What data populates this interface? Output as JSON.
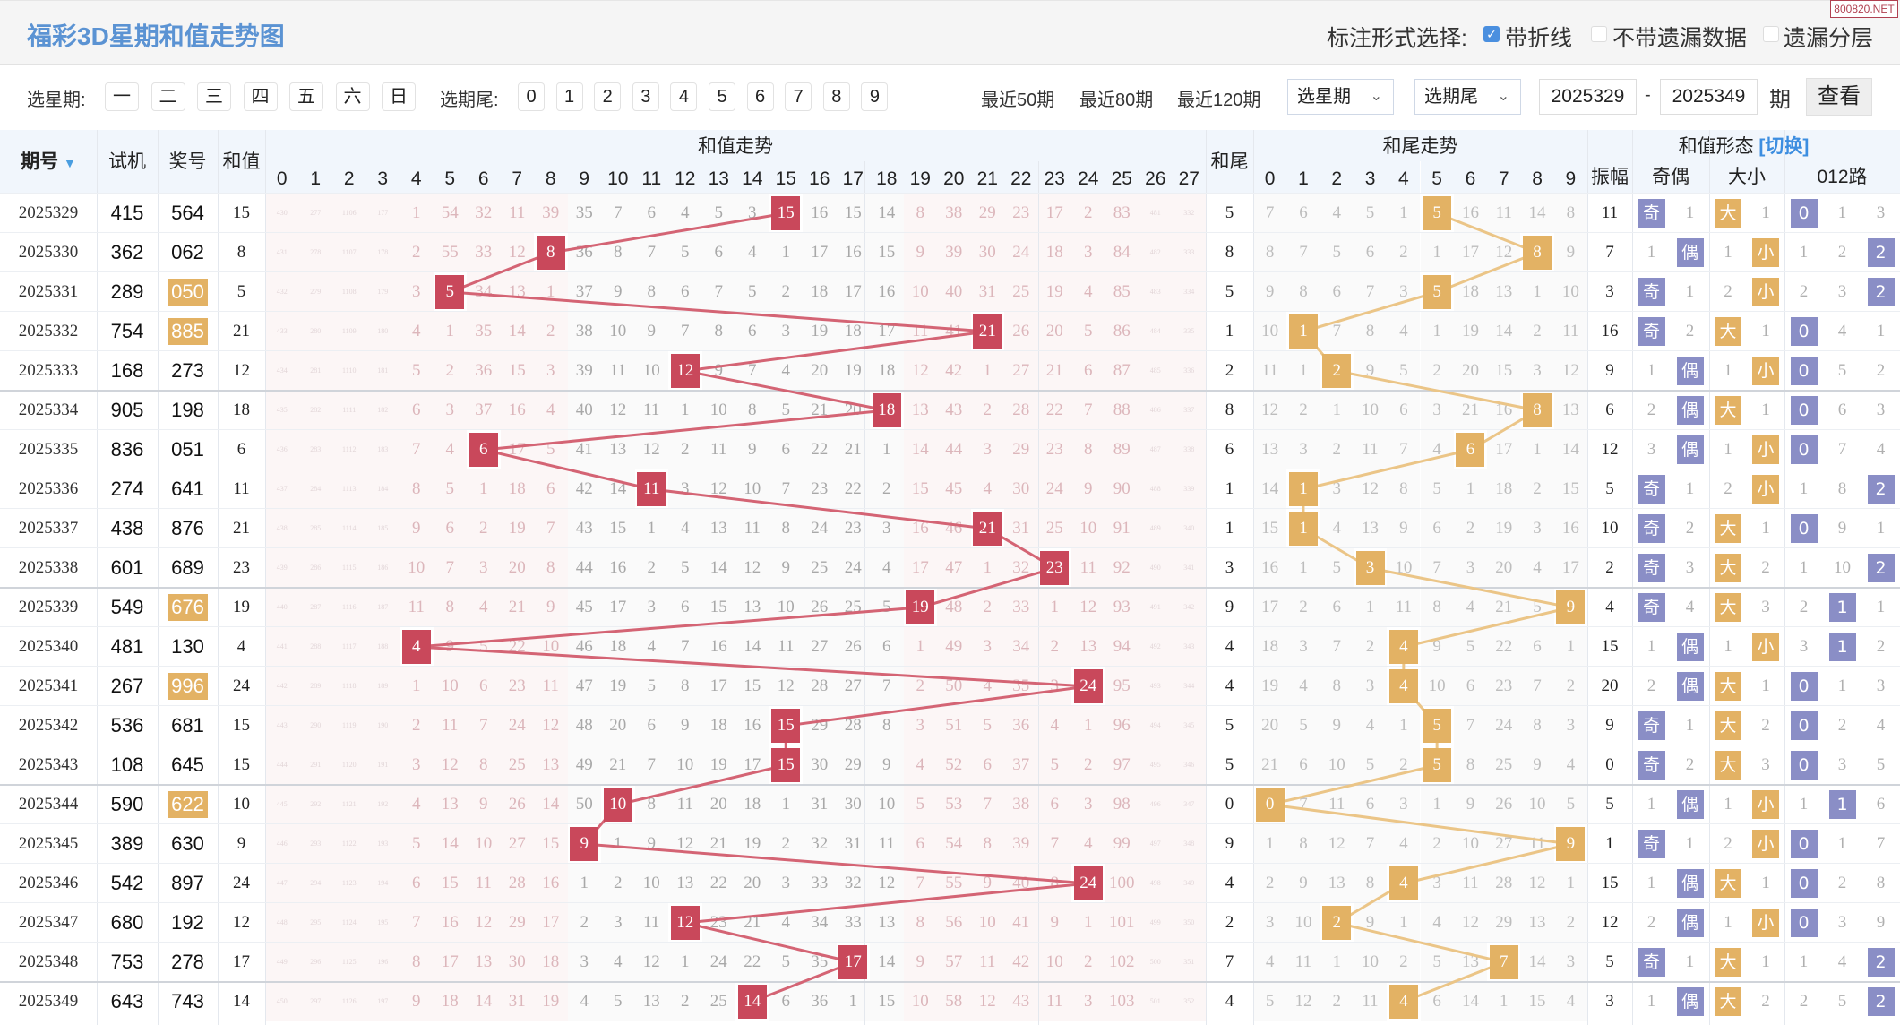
{
  "title": "福彩3D星期和值走势图",
  "watermark": "800820.NET",
  "mark_options": {
    "label": "标注形式选择:",
    "items": [
      {
        "label": "带折线",
        "checked": true
      },
      {
        "label": "不带遗漏数据",
        "checked": false
      },
      {
        "label": "遗漏分层",
        "checked": false
      }
    ]
  },
  "filters": {
    "weekday_label": "选星期:",
    "weekdays": [
      "一",
      "二",
      "三",
      "四",
      "五",
      "六",
      "日"
    ],
    "tail_label": "选期尾:",
    "tails": [
      "0",
      "1",
      "2",
      "3",
      "4",
      "5",
      "6",
      "7",
      "8",
      "9"
    ],
    "recent": [
      "最近50期",
      "最近80期",
      "最近120期"
    ],
    "weekday_select": "选星期",
    "tail_select": "选期尾",
    "from_issue": "2025329",
    "dash": "-",
    "to_issue": "2025349",
    "period_unit": "期",
    "view_button": "查看"
  },
  "header": {
    "issue": "期号",
    "test": "试机",
    "draw": "奖号",
    "sum": "和值",
    "sum_trend": "和值走势",
    "sum_cols": [
      "0",
      "1",
      "2",
      "3",
      "4",
      "5",
      "6",
      "7",
      "8",
      "9",
      "10",
      "11",
      "12",
      "13",
      "14",
      "15",
      "16",
      "17",
      "18",
      "19",
      "20",
      "21",
      "22",
      "23",
      "24",
      "25",
      "26",
      "27"
    ],
    "tail": "和尾",
    "tail_trend": "和尾走势",
    "tail_cols": [
      "0",
      "1",
      "2",
      "3",
      "4",
      "5",
      "6",
      "7",
      "8",
      "9"
    ],
    "form": "和值形态",
    "switch": "[切换]",
    "amplitude": "振幅",
    "odd_even": "奇偶",
    "big_small": "大小",
    "route012": "012路"
  },
  "colors": {
    "sum_hit": "#c9485b",
    "tail_hit": "#e3b264",
    "form_marker": "#8a8ec6",
    "title": "#5b93d3",
    "pair_highlight": "#e3b264"
  },
  "rows": [
    {
      "issue": "2025329",
      "test": "415",
      "draw": "564",
      "pair": false,
      "sum": "15",
      "tail": "5",
      "amp": "11",
      "sum_cells": [
        430,
        277,
        1106,
        177,
        1,
        54,
        32,
        11,
        39,
        35,
        7,
        6,
        4,
        5,
        3,
        "15",
        16,
        15,
        14,
        8,
        38,
        29,
        23,
        17,
        2,
        83,
        481,
        332
      ],
      "tail_cells": [
        7,
        6,
        4,
        5,
        1,
        "5",
        16,
        11,
        14,
        8
      ],
      "oe": [
        "奇",
        1
      ],
      "bs": [
        "大",
        1
      ],
      "route": [
        "0",
        1,
        3
      ]
    },
    {
      "issue": "2025330",
      "test": "362",
      "draw": "062",
      "pair": false,
      "sum": "8",
      "tail": "8",
      "amp": "7",
      "sum_cells": [
        431,
        278,
        1107,
        178,
        2,
        55,
        33,
        12,
        "8",
        36,
        8,
        7,
        5,
        6,
        4,
        1,
        17,
        16,
        15,
        9,
        39,
        30,
        24,
        18,
        3,
        84,
        482,
        333
      ],
      "tail_cells": [
        8,
        7,
        5,
        6,
        2,
        1,
        17,
        12,
        "8",
        9
      ],
      "oe": [
        1,
        "偶"
      ],
      "bs": [
        1,
        "小"
      ],
      "route": [
        1,
        2,
        "2"
      ]
    },
    {
      "issue": "2025331",
      "test": "289",
      "draw": "050",
      "pair": true,
      "sum": "5",
      "tail": "5",
      "amp": "3",
      "sum_cells": [
        432,
        279,
        1108,
        179,
        3,
        "5",
        34,
        13,
        1,
        37,
        9,
        8,
        6,
        7,
        5,
        2,
        18,
        17,
        16,
        10,
        40,
        31,
        25,
        19,
        4,
        85,
        483,
        334
      ],
      "tail_cells": [
        9,
        8,
        6,
        7,
        3,
        "5",
        18,
        13,
        1,
        10
      ],
      "oe": [
        "奇",
        1
      ],
      "bs": [
        2,
        "小"
      ],
      "route": [
        2,
        3,
        "2"
      ]
    },
    {
      "issue": "2025332",
      "test": "754",
      "draw": "885",
      "pair": true,
      "sum": "21",
      "tail": "1",
      "amp": "16",
      "sum_cells": [
        433,
        280,
        1109,
        180,
        4,
        1,
        35,
        14,
        2,
        38,
        10,
        9,
        7,
        8,
        6,
        3,
        19,
        18,
        17,
        11,
        41,
        "21",
        26,
        20,
        5,
        86,
        484,
        335
      ],
      "tail_cells": [
        10,
        "1",
        7,
        8,
        4,
        1,
        19,
        14,
        2,
        11
      ],
      "oe": [
        "奇",
        2
      ],
      "bs": [
        "大",
        1
      ],
      "route": [
        "0",
        4,
        1
      ]
    },
    {
      "issue": "2025333",
      "test": "168",
      "draw": "273",
      "pair": false,
      "sum": "12",
      "tail": "2",
      "amp": "9",
      "sum_cells": [
        434,
        281,
        1110,
        181,
        5,
        2,
        36,
        15,
        3,
        39,
        11,
        10,
        "12",
        9,
        7,
        4,
        20,
        19,
        18,
        12,
        42,
        1,
        27,
        21,
        6,
        87,
        485,
        336
      ],
      "tail_cells": [
        11,
        1,
        "2",
        9,
        5,
        2,
        20,
        15,
        3,
        12
      ],
      "oe": [
        1,
        "偶"
      ],
      "bs": [
        1,
        "小"
      ],
      "route": [
        "0",
        5,
        2
      ]
    },
    {
      "issue": "2025334",
      "test": "905",
      "draw": "198",
      "pair": false,
      "sum": "18",
      "tail": "8",
      "amp": "6",
      "sum_cells": [
        435,
        282,
        1111,
        182,
        6,
        3,
        37,
        16,
        4,
        40,
        12,
        11,
        1,
        10,
        8,
        5,
        21,
        20,
        "18",
        13,
        43,
        2,
        28,
        22,
        7,
        88,
        486,
        337
      ],
      "tail_cells": [
        12,
        2,
        1,
        10,
        6,
        3,
        21,
        16,
        "8",
        13
      ],
      "oe": [
        2,
        "偶"
      ],
      "bs": [
        "大",
        1
      ],
      "route": [
        "0",
        6,
        3
      ]
    },
    {
      "issue": "2025335",
      "test": "836",
      "draw": "051",
      "pair": false,
      "sum": "6",
      "tail": "6",
      "amp": "12",
      "sum_cells": [
        436,
        283,
        1112,
        183,
        7,
        4,
        "6",
        17,
        5,
        41,
        13,
        12,
        2,
        11,
        9,
        6,
        22,
        21,
        1,
        14,
        44,
        3,
        29,
        23,
        8,
        89,
        487,
        338
      ],
      "tail_cells": [
        13,
        3,
        2,
        11,
        7,
        4,
        "6",
        17,
        1,
        14
      ],
      "oe": [
        3,
        "偶"
      ],
      "bs": [
        1,
        "小"
      ],
      "route": [
        "0",
        7,
        4
      ]
    },
    {
      "issue": "2025336",
      "test": "274",
      "draw": "641",
      "pair": false,
      "sum": "11",
      "tail": "1",
      "amp": "5",
      "sum_cells": [
        437,
        284,
        1113,
        184,
        8,
        5,
        1,
        18,
        6,
        42,
        14,
        "11",
        3,
        12,
        10,
        7,
        23,
        22,
        2,
        15,
        45,
        4,
        30,
        24,
        9,
        90,
        488,
        339
      ],
      "tail_cells": [
        14,
        "1",
        3,
        12,
        8,
        5,
        1,
        18,
        2,
        15
      ],
      "oe": [
        "奇",
        1
      ],
      "bs": [
        2,
        "小"
      ],
      "route": [
        1,
        8,
        "2"
      ]
    },
    {
      "issue": "2025337",
      "test": "438",
      "draw": "876",
      "pair": false,
      "sum": "21",
      "tail": "1",
      "amp": "10",
      "sum_cells": [
        438,
        285,
        1114,
        185,
        9,
        6,
        2,
        19,
        7,
        43,
        15,
        1,
        4,
        13,
        11,
        8,
        24,
        23,
        3,
        16,
        46,
        "21",
        31,
        25,
        10,
        91,
        489,
        340
      ],
      "tail_cells": [
        15,
        "1",
        4,
        13,
        9,
        6,
        2,
        19,
        3,
        16
      ],
      "oe": [
        "奇",
        2
      ],
      "bs": [
        "大",
        1
      ],
      "route": [
        "0",
        9,
        1
      ]
    },
    {
      "issue": "2025338",
      "test": "601",
      "draw": "689",
      "pair": false,
      "sum": "23",
      "tail": "3",
      "amp": "2",
      "sum_cells": [
        439,
        286,
        1115,
        186,
        10,
        7,
        3,
        20,
        8,
        44,
        16,
        2,
        5,
        14,
        12,
        9,
        25,
        24,
        4,
        17,
        47,
        1,
        32,
        "23",
        11,
        92,
        490,
        341
      ],
      "tail_cells": [
        16,
        1,
        5,
        "3",
        10,
        7,
        3,
        20,
        4,
        17
      ],
      "oe": [
        "奇",
        3
      ],
      "bs": [
        "大",
        2
      ],
      "route": [
        1,
        10,
        "2"
      ]
    },
    {
      "issue": "2025339",
      "test": "549",
      "draw": "676",
      "pair": true,
      "sum": "19",
      "tail": "9",
      "amp": "4",
      "sum_cells": [
        440,
        287,
        1116,
        187,
        11,
        8,
        4,
        21,
        9,
        45,
        17,
        3,
        6,
        15,
        13,
        10,
        26,
        25,
        5,
        "19",
        48,
        2,
        33,
        1,
        12,
        93,
        491,
        342
      ],
      "tail_cells": [
        17,
        2,
        6,
        1,
        11,
        8,
        4,
        21,
        5,
        "9"
      ],
      "oe": [
        "奇",
        4
      ],
      "bs": [
        "大",
        3
      ],
      "route": [
        2,
        "1",
        1
      ]
    },
    {
      "issue": "2025340",
      "test": "481",
      "draw": "130",
      "pair": false,
      "sum": "4",
      "tail": "4",
      "amp": "15",
      "sum_cells": [
        441,
        288,
        1117,
        188,
        "4",
        9,
        5,
        22,
        10,
        46,
        18,
        4,
        7,
        16,
        14,
        11,
        27,
        26,
        6,
        1,
        49,
        3,
        34,
        2,
        13,
        94,
        492,
        343
      ],
      "tail_cells": [
        18,
        3,
        7,
        2,
        "4",
        9,
        5,
        22,
        6,
        1
      ],
      "oe": [
        1,
        "偶"
      ],
      "bs": [
        1,
        "小"
      ],
      "route": [
        3,
        "1",
        2
      ]
    },
    {
      "issue": "2025341",
      "test": "267",
      "draw": "996",
      "pair": true,
      "sum": "24",
      "tail": "4",
      "amp": "20",
      "sum_cells": [
        442,
        289,
        1118,
        189,
        1,
        10,
        6,
        23,
        11,
        47,
        19,
        5,
        8,
        17,
        15,
        12,
        28,
        27,
        7,
        2,
        50,
        4,
        35,
        3,
        "24",
        95,
        493,
        344
      ],
      "tail_cells": [
        19,
        4,
        8,
        3,
        "4",
        10,
        6,
        23,
        7,
        2
      ],
      "oe": [
        2,
        "偶"
      ],
      "bs": [
        "大",
        1
      ],
      "route": [
        "0",
        1,
        3
      ]
    },
    {
      "issue": "2025342",
      "test": "536",
      "draw": "681",
      "pair": false,
      "sum": "15",
      "tail": "5",
      "amp": "9",
      "sum_cells": [
        443,
        290,
        1119,
        190,
        2,
        11,
        7,
        24,
        12,
        48,
        20,
        6,
        9,
        18,
        16,
        "15",
        29,
        28,
        8,
        3,
        51,
        5,
        36,
        4,
        1,
        96,
        494,
        345
      ],
      "tail_cells": [
        20,
        5,
        9,
        4,
        1,
        "5",
        7,
        24,
        8,
        3
      ],
      "oe": [
        "奇",
        1
      ],
      "bs": [
        "大",
        2
      ],
      "route": [
        "0",
        2,
        4
      ]
    },
    {
      "issue": "2025343",
      "test": "108",
      "draw": "645",
      "pair": false,
      "sum": "15",
      "tail": "5",
      "amp": "0",
      "sum_cells": [
        444,
        291,
        1120,
        191,
        3,
        12,
        8,
        25,
        13,
        49,
        21,
        7,
        10,
        19,
        17,
        "15",
        30,
        29,
        9,
        4,
        52,
        6,
        37,
        5,
        2,
        97,
        495,
        346
      ],
      "tail_cells": [
        21,
        6,
        10,
        5,
        2,
        "5",
        8,
        25,
        9,
        4
      ],
      "oe": [
        "奇",
        2
      ],
      "bs": [
        "大",
        3
      ],
      "route": [
        "0",
        3,
        5
      ]
    },
    {
      "issue": "2025344",
      "test": "590",
      "draw": "622",
      "pair": true,
      "sum": "10",
      "tail": "0",
      "amp": "5",
      "sum_cells": [
        445,
        292,
        1121,
        192,
        4,
        13,
        9,
        26,
        14,
        50,
        "10",
        8,
        11,
        20,
        18,
        1,
        31,
        30,
        10,
        5,
        53,
        7,
        38,
        6,
        3,
        98,
        496,
        347
      ],
      "tail_cells": [
        "0",
        7,
        11,
        6,
        3,
        1,
        9,
        26,
        10,
        5
      ],
      "oe": [
        1,
        "偶"
      ],
      "bs": [
        1,
        "小"
      ],
      "route": [
        1,
        "1",
        6
      ]
    },
    {
      "issue": "2025345",
      "test": "389",
      "draw": "630",
      "pair": false,
      "sum": "9",
      "tail": "9",
      "amp": "1",
      "sum_cells": [
        446,
        293,
        1122,
        193,
        5,
        14,
        10,
        27,
        15,
        "9",
        1,
        9,
        12,
        21,
        19,
        2,
        32,
        31,
        11,
        6,
        54,
        8,
        39,
        7,
        4,
        99,
        497,
        348
      ],
      "tail_cells": [
        1,
        8,
        12,
        7,
        4,
        2,
        10,
        27,
        11,
        "9"
      ],
      "oe": [
        "奇",
        1
      ],
      "bs": [
        2,
        "小"
      ],
      "route": [
        "0",
        1,
        7
      ]
    },
    {
      "issue": "2025346",
      "test": "542",
      "draw": "897",
      "pair": false,
      "sum": "24",
      "tail": "4",
      "amp": "15",
      "sum_cells": [
        447,
        294,
        1123,
        194,
        6,
        15,
        11,
        28,
        16,
        1,
        2,
        10,
        13,
        22,
        20,
        3,
        33,
        32,
        12,
        7,
        55,
        9,
        40,
        8,
        "24",
        100,
        498,
        349
      ],
      "tail_cells": [
        2,
        9,
        13,
        8,
        "4",
        3,
        11,
        28,
        12,
        1
      ],
      "oe": [
        1,
        "偶"
      ],
      "bs": [
        "大",
        1
      ],
      "route": [
        "0",
        2,
        8
      ]
    },
    {
      "issue": "2025347",
      "test": "680",
      "draw": "192",
      "pair": false,
      "sum": "12",
      "tail": "2",
      "amp": "12",
      "sum_cells": [
        448,
        295,
        1124,
        195,
        7,
        16,
        12,
        29,
        17,
        2,
        3,
        11,
        "12",
        23,
        21,
        4,
        34,
        33,
        13,
        8,
        56,
        10,
        41,
        9,
        1,
        101,
        499,
        350
      ],
      "tail_cells": [
        3,
        10,
        "2",
        9,
        1,
        4,
        12,
        29,
        13,
        2
      ],
      "oe": [
        2,
        "偶"
      ],
      "bs": [
        1,
        "小"
      ],
      "route": [
        "0",
        3,
        9
      ]
    },
    {
      "issue": "2025348",
      "test": "753",
      "draw": "278",
      "pair": false,
      "sum": "17",
      "tail": "7",
      "amp": "5",
      "sum_cells": [
        449,
        296,
        1125,
        196,
        8,
        17,
        13,
        30,
        18,
        3,
        4,
        12,
        1,
        24,
        22,
        5,
        35,
        "17",
        14,
        9,
        57,
        11,
        42,
        10,
        2,
        102,
        500,
        351
      ],
      "tail_cells": [
        4,
        11,
        1,
        10,
        2,
        5,
        13,
        "7",
        14,
        3
      ],
      "oe": [
        "奇",
        1
      ],
      "bs": [
        "大",
        1
      ],
      "route": [
        1,
        4,
        "2"
      ]
    },
    {
      "issue": "2025349",
      "test": "643",
      "draw": "743",
      "pair": false,
      "sum": "14",
      "tail": "4",
      "amp": "3",
      "sum_cells": [
        450,
        297,
        1126,
        197,
        9,
        18,
        14,
        31,
        19,
        4,
        5,
        13,
        2,
        25,
        "14",
        6,
        36,
        1,
        15,
        10,
        58,
        12,
        43,
        11,
        3,
        103,
        501,
        352
      ],
      "tail_cells": [
        5,
        12,
        2,
        11,
        "4",
        6,
        14,
        1,
        15,
        4
      ],
      "oe": [
        1,
        "偶"
      ],
      "bs": [
        "大",
        2
      ],
      "route": [
        2,
        5,
        "2"
      ]
    }
  ]
}
